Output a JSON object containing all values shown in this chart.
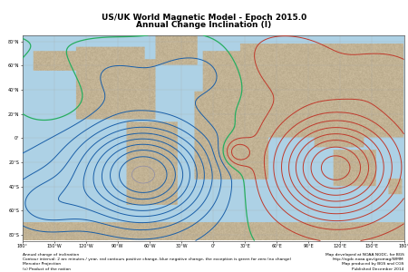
{
  "title_line1": "US/UK World Magnetic Model - Epoch 2015.0",
  "title_line2": "Annual Change Inclination (I)",
  "title_fontsize": 6.5,
  "title_fontweight": "bold",
  "fig_width": 4.5,
  "fig_height": 3.0,
  "dpi": 100,
  "ocean_color": [
    0.68,
    0.82,
    0.9
  ],
  "land_color": [
    0.76,
    0.7,
    0.58
  ],
  "map_border_color": "#555555",
  "map_border_lw": 0.5,
  "footer_left_lines": [
    "Annual change of inclination",
    "Contour interval: 2 arc minutes / year, red contours positive change, blue negative change, the exception is green for zero (no change)",
    "Mercator Projection",
    "(c) Product of the nation"
  ],
  "footer_right_lines": [
    "Map developed at NOAA NGDC, for BGS",
    "http://ngdc.noaa.gov/geomag/WMM",
    "Map produced by BGS and CGS",
    "Published December 2014"
  ],
  "footer_fontsize": 3.2,
  "blue_color": "#1a5fa8",
  "red_color": "#c0392b",
  "green_color": "#27ae60",
  "grey_color": "#8888aa",
  "contour_lw_main": 0.7,
  "contour_lw_zero": 0.9,
  "contour_lw_grey": 0.45,
  "gaussians": [
    {
      "lon_c": -65,
      "lat_c": -30,
      "amp": -20,
      "sig_lon": 42,
      "sig_lat": 28
    },
    {
      "lon_c": 115,
      "lat_c": -25,
      "amp": 18,
      "sig_lon": 38,
      "sig_lat": 28
    },
    {
      "lon_c": 22,
      "lat_c": -12,
      "amp": 6,
      "sig_lon": 10,
      "sig_lat": 8
    },
    {
      "lon_c": 0,
      "lat_c": 55,
      "amp": -4,
      "sig_lon": 45,
      "sig_lat": 18
    },
    {
      "lon_c": -150,
      "lat_c": 35,
      "amp": 3,
      "sig_lon": 28,
      "sig_lat": 18
    },
    {
      "lon_c": -160,
      "lat_c": -55,
      "amp": -5,
      "sig_lon": 28,
      "sig_lat": 18
    },
    {
      "lon_c": 55,
      "lat_c": 60,
      "amp": 4,
      "sig_lon": 38,
      "sig_lat": 18
    },
    {
      "lon_c": -100,
      "lat_c": 50,
      "amp": -2,
      "sig_lon": 25,
      "sig_lat": 15
    },
    {
      "lon_c": 160,
      "lat_c": 50,
      "amp": 2,
      "sig_lon": 25,
      "sig_lat": 15
    }
  ]
}
